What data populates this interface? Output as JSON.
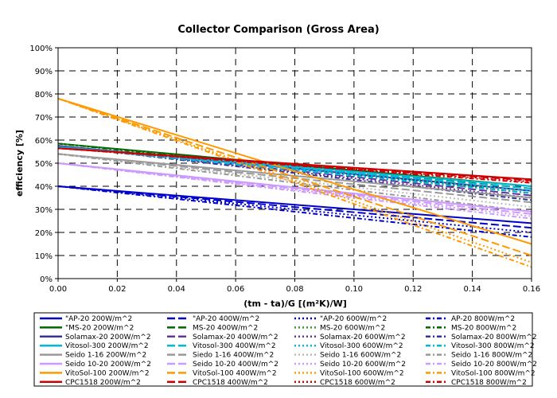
{
  "chart_data": {
    "type": "line",
    "title": "Collector Comparison (Gross Area)",
    "xlabel": "(tm - ta)/G [(m²K)/W]",
    "ylabel": "efficiency [%]",
    "xlim": [
      0,
      0.16
    ],
    "ylim": [
      0,
      100
    ],
    "x_ticks": [
      "0.00",
      "0.02",
      "0.04",
      "0.06",
      "0.08",
      "0.10",
      "0.12",
      "0.14",
      "0.16"
    ],
    "y_ticks": [
      "0%",
      "10%",
      "20%",
      "30%",
      "40%",
      "50%",
      "60%",
      "70%",
      "80%",
      "90%",
      "100%"
    ],
    "grid": true,
    "legend_position": "bottom",
    "x": [
      0.0,
      0.16
    ],
    "series": [
      {
        "name": "\"AP-20 200W/m^2",
        "color": "#0000cc",
        "dash": "solid",
        "values": [
          40,
          24
        ]
      },
      {
        "name": "\"AP-20 400W/m^2",
        "color": "#0000cc",
        "dash": "long",
        "values": [
          40,
          22
        ]
      },
      {
        "name": "\"AP-20 600W/m^2",
        "color": "#0000cc",
        "dash": "dot",
        "values": [
          40,
          20
        ]
      },
      {
        "name": "AP-20 800W/m^2",
        "color": "#0000cc",
        "dash": "dashdot",
        "values": [
          40,
          18
        ]
      },
      {
        "name": "\"MS-20 200W/m^2",
        "color": "#006600",
        "dash": "solid",
        "values": [
          58.5,
          40
        ]
      },
      {
        "name": "MS-20 400W/m^2",
        "color": "#006600",
        "dash": "long",
        "values": [
          58.5,
          39
        ]
      },
      {
        "name": "MS-20 600W/m^2",
        "color": "#339933",
        "dash": "dot",
        "values": [
          58.5,
          38
        ]
      },
      {
        "name": "MS-20 800W/m^2",
        "color": "#006600",
        "dash": "dashdot",
        "values": [
          58.5,
          37
        ]
      },
      {
        "name": "Solamax-20 200W/m^2",
        "color": "#333399",
        "dash": "solid",
        "values": [
          57.5,
          38
        ]
      },
      {
        "name": "Solamax-20 400W/m^2",
        "color": "#663399",
        "dash": "long",
        "values": [
          57.5,
          36
        ]
      },
      {
        "name": "Solamax-20 600W/m^2",
        "color": "#663399",
        "dash": "dot",
        "values": [
          57.5,
          35
        ]
      },
      {
        "name": "Solamax-20 800W/m^2",
        "color": "#333399",
        "dash": "dashdot",
        "values": [
          57.5,
          34
        ]
      },
      {
        "name": "Vitosol-300 200W/m^2",
        "color": "#00bbdd",
        "dash": "solid",
        "values": [
          57,
          40
        ]
      },
      {
        "name": "Vitosol-300 400W/m^2",
        "color": "#00bbdd",
        "dash": "long",
        "values": [
          57,
          39
        ]
      },
      {
        "name": "Vitosol-300 600W/m^2",
        "color": "#00bbdd",
        "dash": "dot",
        "values": [
          57,
          38
        ]
      },
      {
        "name": "Vitosol-300 800W/m^2",
        "color": "#00bbdd",
        "dash": "dashdot",
        "values": [
          57,
          37
        ]
      },
      {
        "name": "Seido 1-16 200W/m^2",
        "color": "#999999",
        "dash": "solid",
        "values": [
          54,
          35
        ]
      },
      {
        "name": "Siedo 1-16 400W/m^2",
        "color": "#999999",
        "dash": "long",
        "values": [
          54,
          33
        ]
      },
      {
        "name": "Seido 1-16 600W/m^2",
        "color": "#bbbbbb",
        "dash": "dot",
        "values": [
          54,
          31
        ]
      },
      {
        "name": "Seido 1-16 800W/m^2",
        "color": "#999999",
        "dash": "dashdot",
        "values": [
          54,
          29
        ]
      },
      {
        "name": "Seido 10-20 200W/m^2",
        "color": "#cc99ff",
        "dash": "solid",
        "values": [
          50,
          29
        ]
      },
      {
        "name": "Seido 10-20 400W/m^2",
        "color": "#cc99ff",
        "dash": "long",
        "values": [
          50,
          28
        ]
      },
      {
        "name": "Seido 10-20 600W/m^2",
        "color": "#cc99ff",
        "dash": "dot",
        "values": [
          50,
          27
        ]
      },
      {
        "name": "Seido 10-20 800W/m^2",
        "color": "#cc99ff",
        "dash": "dashdot",
        "values": [
          50,
          26
        ]
      },
      {
        "name": "VitoSol-100 200W/m^2",
        "color": "#ff9900",
        "dash": "solid",
        "values": [
          78,
          15
        ]
      },
      {
        "name": "VitoSol-100 400W/m^2",
        "color": "#ff9900",
        "dash": "long",
        "values": [
          78,
          10
        ]
      },
      {
        "name": "VitoSol-100 600W/m^2",
        "color": "#ff9900",
        "dash": "dot",
        "values": [
          78,
          7
        ]
      },
      {
        "name": "VitoSol-100 800W/m^2",
        "color": "#ff9900",
        "dash": "dashdot",
        "values": [
          78,
          5
        ]
      },
      {
        "name": "CPC1518 200W/m^2",
        "color": "#cc0000",
        "dash": "solid",
        "values": [
          56.5,
          43
        ]
      },
      {
        "name": "CPC1518 400W/m^2",
        "color": "#cc0000",
        "dash": "long",
        "values": [
          56.5,
          42.5
        ]
      },
      {
        "name": "CPC1518 600W/m^2",
        "color": "#cc0000",
        "dash": "dot",
        "values": [
          56.5,
          42
        ]
      },
      {
        "name": "CPC1518 800W/m^2",
        "color": "#cc0000",
        "dash": "dashdot",
        "values": [
          56.5,
          41.5
        ]
      }
    ]
  }
}
